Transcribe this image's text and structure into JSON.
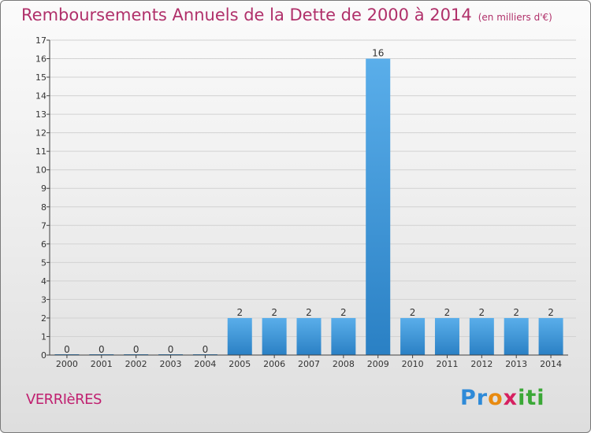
{
  "header": {
    "title": "Remboursements Annuels de la Dette de 2000 à 2014",
    "subtitle": "(en milliers d'€)"
  },
  "footer": {
    "commune": "VERRIèRES",
    "logo": {
      "p1": "Pr",
      "p2": "o",
      "p3": "x",
      "p4": "iti"
    }
  },
  "colors": {
    "title": "#b0306a",
    "bar_top": "#5aaeea",
    "bar_bottom": "#2a80c4",
    "grid": "#d2d2d2",
    "axis": "#404040"
  },
  "chart_data": {
    "type": "bar",
    "title": "Remboursements Annuels de la Dette de 2000 à 2014",
    "xlabel": "",
    "ylabel": "",
    "categories": [
      "2000",
      "2001",
      "2002",
      "2003",
      "2004",
      "2005",
      "2006",
      "2007",
      "2008",
      "2009",
      "2010",
      "2011",
      "2012",
      "2013",
      "2014"
    ],
    "values": [
      0,
      0,
      0,
      0,
      0,
      2,
      2,
      2,
      2,
      16,
      2,
      2,
      2,
      2,
      2
    ],
    "ylim": [
      0,
      17
    ],
    "yticks": [
      0,
      1,
      2,
      3,
      4,
      5,
      6,
      7,
      8,
      9,
      10,
      11,
      12,
      13,
      14,
      15,
      16,
      17
    ],
    "grid": true,
    "legend": "none"
  }
}
